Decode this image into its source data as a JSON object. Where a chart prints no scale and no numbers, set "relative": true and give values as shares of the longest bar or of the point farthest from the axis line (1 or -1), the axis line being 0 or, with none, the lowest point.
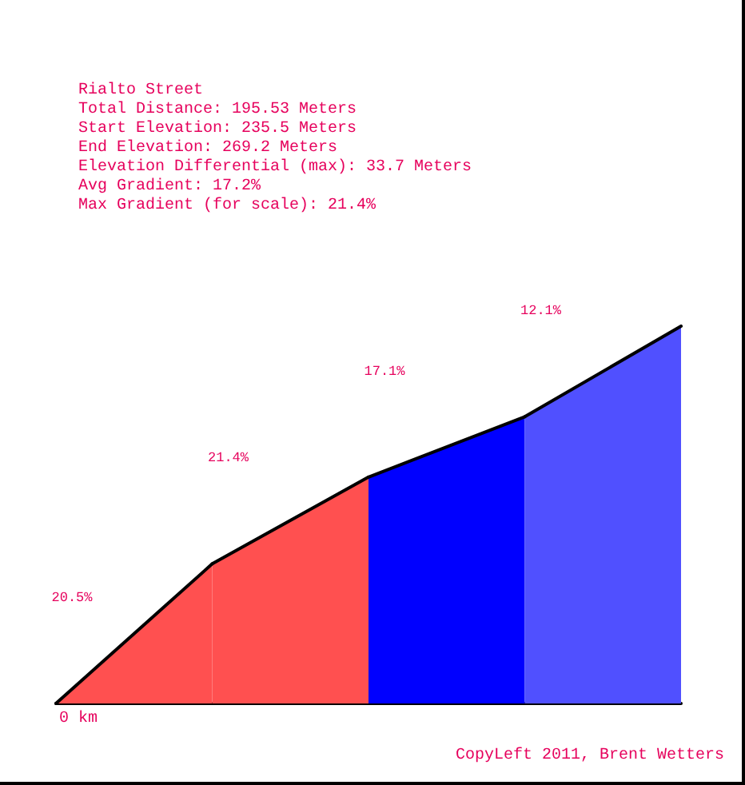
{
  "chart_data": {
    "type": "area",
    "title": "Rialto Street",
    "subtitle": "Total Distance: 195.53 Meters\nStart Elevation: 235.5 Meters\nEnd Elevation: 269.2 Meters\nElevation Differential (max): 33.7 Meters\nAvg Gradient: 17.2%\nMax Gradient (for scale): 21.4%",
    "relative": true,
    "marker": "none",
    "categories": [
      null,
      null,
      null,
      null,
      null
    ],
    "series": [
      {
        "color": "#ff5050",
        "values": [
          0,
          0.37,
          null,
          null,
          null
        ]
      },
      {
        "color": "#ff5050",
        "values": [
          null,
          0.37,
          0.6,
          null,
          null
        ]
      },
      {
        "color": "#0000ff",
        "values": [
          null,
          null,
          0.6,
          0.76,
          null
        ]
      },
      {
        "color": "#5050ff",
        "values": [
          null,
          null,
          null,
          0.76,
          1
        ]
      }
    ],
    "annotations": [
      "20.5%",
      "21.4%",
      "17.1%",
      "12.1%",
      "0 km",
      "CopyLeft 2011, Brent Wetters"
    ]
  }
}
